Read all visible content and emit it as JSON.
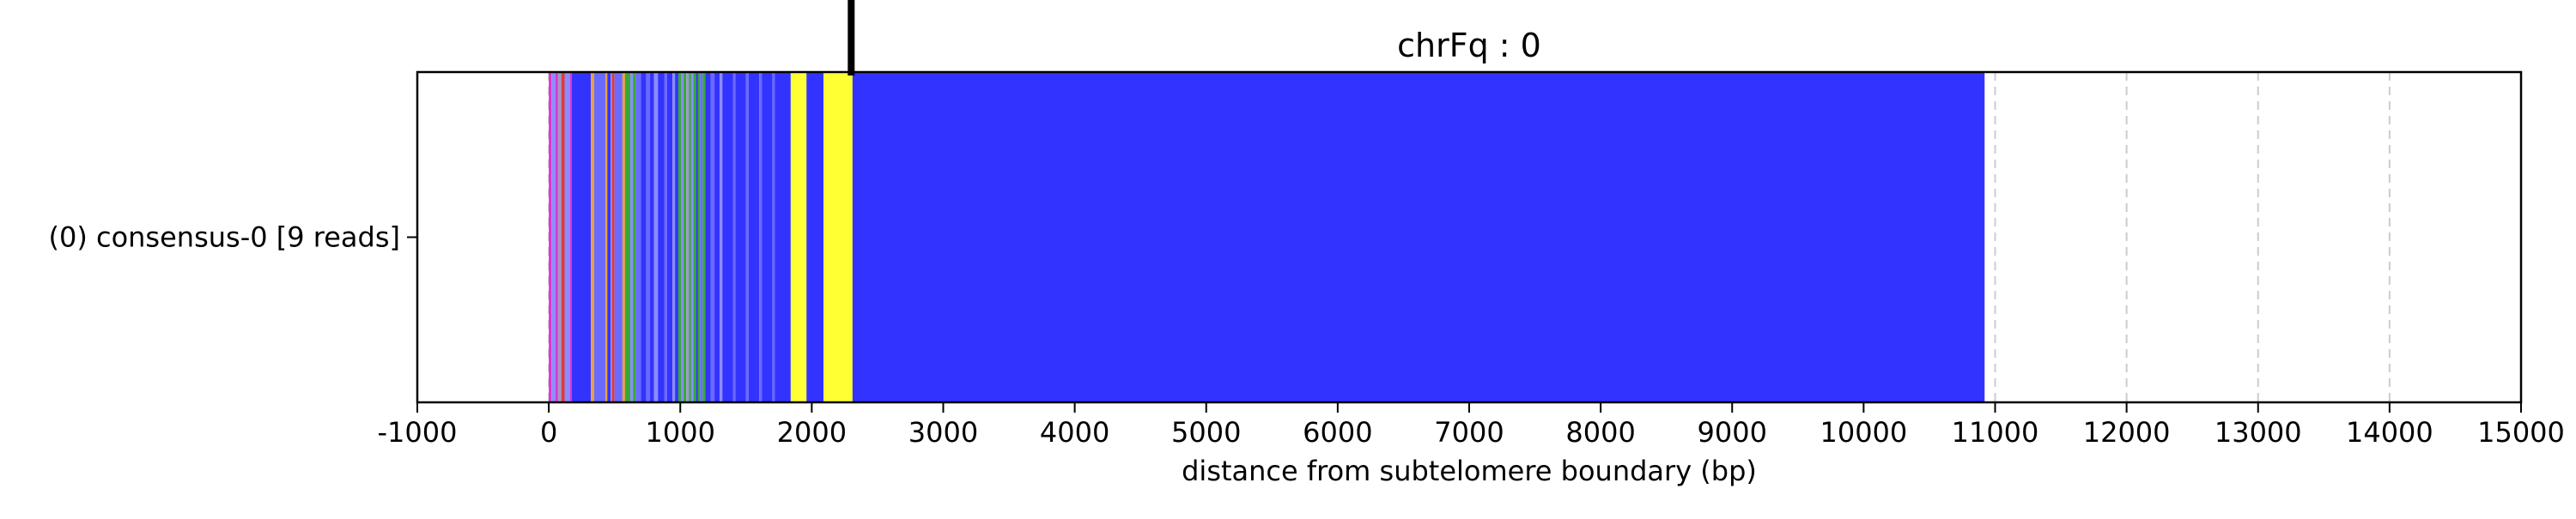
{
  "chart_data": {
    "type": "bar",
    "title": "chrFq : 0",
    "xlabel": "distance from subtelomere boundary (bp)",
    "ylabel": "",
    "xlim": [
      -1000,
      15000
    ],
    "x_ticks": [
      -1000,
      0,
      1000,
      2000,
      3000,
      4000,
      5000,
      6000,
      7000,
      8000,
      9000,
      10000,
      11000,
      12000,
      13000,
      14000,
      15000
    ],
    "x_tick_labels": [
      "-1000",
      "0",
      "1000",
      "2000",
      "3000",
      "4000",
      "5000",
      "6000",
      "7000",
      "8000",
      "9000",
      "10000",
      "11000",
      "12000",
      "13000",
      "14000",
      "15000"
    ],
    "grid": {
      "x_major": true,
      "style": "dashed",
      "color": "#cccccc"
    },
    "rows": [
      {
        "label": "(0) consensus-0 [9 reads]",
        "start": 0,
        "end": 10920
      }
    ],
    "marker": {
      "x": 2300,
      "color": "#000000"
    },
    "colors": {
      "blue": "#3333ff",
      "light_blue": "#6a6aff",
      "pale_blue": "#8b8bff",
      "magenta": "#dd33cc",
      "red": "#e03a3a",
      "orange": "#e8a040",
      "green": "#33aa33",
      "yellow": "#ffff33",
      "grey": "#9a9ac8"
    },
    "segments": [
      {
        "start": 0,
        "end": 20,
        "color": "magenta"
      },
      {
        "start": 20,
        "end": 50,
        "color": "pale_blue"
      },
      {
        "start": 50,
        "end": 70,
        "color": "magenta"
      },
      {
        "start": 70,
        "end": 95,
        "color": "grey"
      },
      {
        "start": 95,
        "end": 120,
        "color": "red"
      },
      {
        "start": 120,
        "end": 160,
        "color": "pale_blue"
      },
      {
        "start": 160,
        "end": 175,
        "color": "magenta"
      },
      {
        "start": 175,
        "end": 320,
        "color": "blue"
      },
      {
        "start": 320,
        "end": 345,
        "color": "orange"
      },
      {
        "start": 345,
        "end": 430,
        "color": "light_blue"
      },
      {
        "start": 430,
        "end": 445,
        "color": "orange"
      },
      {
        "start": 445,
        "end": 470,
        "color": "blue"
      },
      {
        "start": 470,
        "end": 480,
        "color": "pale_blue"
      },
      {
        "start": 480,
        "end": 500,
        "color": "red"
      },
      {
        "start": 500,
        "end": 560,
        "color": "light_blue"
      },
      {
        "start": 560,
        "end": 580,
        "color": "orange"
      },
      {
        "start": 580,
        "end": 620,
        "color": "green"
      },
      {
        "start": 620,
        "end": 640,
        "color": "pale_blue"
      },
      {
        "start": 640,
        "end": 660,
        "color": "green"
      },
      {
        "start": 660,
        "end": 700,
        "color": "light_blue"
      },
      {
        "start": 700,
        "end": 740,
        "color": "blue"
      },
      {
        "start": 740,
        "end": 770,
        "color": "light_blue"
      },
      {
        "start": 770,
        "end": 800,
        "color": "blue"
      },
      {
        "start": 800,
        "end": 830,
        "color": "pale_blue"
      },
      {
        "start": 830,
        "end": 880,
        "color": "blue"
      },
      {
        "start": 880,
        "end": 900,
        "color": "light_blue"
      },
      {
        "start": 900,
        "end": 940,
        "color": "blue"
      },
      {
        "start": 940,
        "end": 960,
        "color": "pale_blue"
      },
      {
        "start": 960,
        "end": 985,
        "color": "blue"
      },
      {
        "start": 985,
        "end": 1005,
        "color": "green"
      },
      {
        "start": 1005,
        "end": 1025,
        "color": "pale_blue"
      },
      {
        "start": 1025,
        "end": 1045,
        "color": "green"
      },
      {
        "start": 1045,
        "end": 1065,
        "color": "grey"
      },
      {
        "start": 1065,
        "end": 1080,
        "color": "green"
      },
      {
        "start": 1080,
        "end": 1100,
        "color": "pale_blue"
      },
      {
        "start": 1100,
        "end": 1120,
        "color": "green"
      },
      {
        "start": 1120,
        "end": 1135,
        "color": "blue"
      },
      {
        "start": 1135,
        "end": 1150,
        "color": "green"
      },
      {
        "start": 1150,
        "end": 1170,
        "color": "light_blue"
      },
      {
        "start": 1170,
        "end": 1190,
        "color": "green"
      },
      {
        "start": 1190,
        "end": 1230,
        "color": "blue"
      },
      {
        "start": 1230,
        "end": 1260,
        "color": "light_blue"
      },
      {
        "start": 1260,
        "end": 1300,
        "color": "blue"
      },
      {
        "start": 1300,
        "end": 1320,
        "color": "pale_blue"
      },
      {
        "start": 1320,
        "end": 1400,
        "color": "blue"
      },
      {
        "start": 1400,
        "end": 1420,
        "color": "light_blue"
      },
      {
        "start": 1420,
        "end": 1500,
        "color": "blue"
      },
      {
        "start": 1500,
        "end": 1520,
        "color": "light_blue"
      },
      {
        "start": 1520,
        "end": 1600,
        "color": "blue"
      },
      {
        "start": 1600,
        "end": 1620,
        "color": "light_blue"
      },
      {
        "start": 1620,
        "end": 1700,
        "color": "blue"
      },
      {
        "start": 1700,
        "end": 1720,
        "color": "light_blue"
      },
      {
        "start": 1720,
        "end": 1840,
        "color": "blue"
      },
      {
        "start": 1840,
        "end": 1960,
        "color": "yellow"
      },
      {
        "start": 1960,
        "end": 2090,
        "color": "blue"
      },
      {
        "start": 2090,
        "end": 2310,
        "color": "yellow"
      },
      {
        "start": 2310,
        "end": 10920,
        "color": "blue"
      }
    ]
  }
}
